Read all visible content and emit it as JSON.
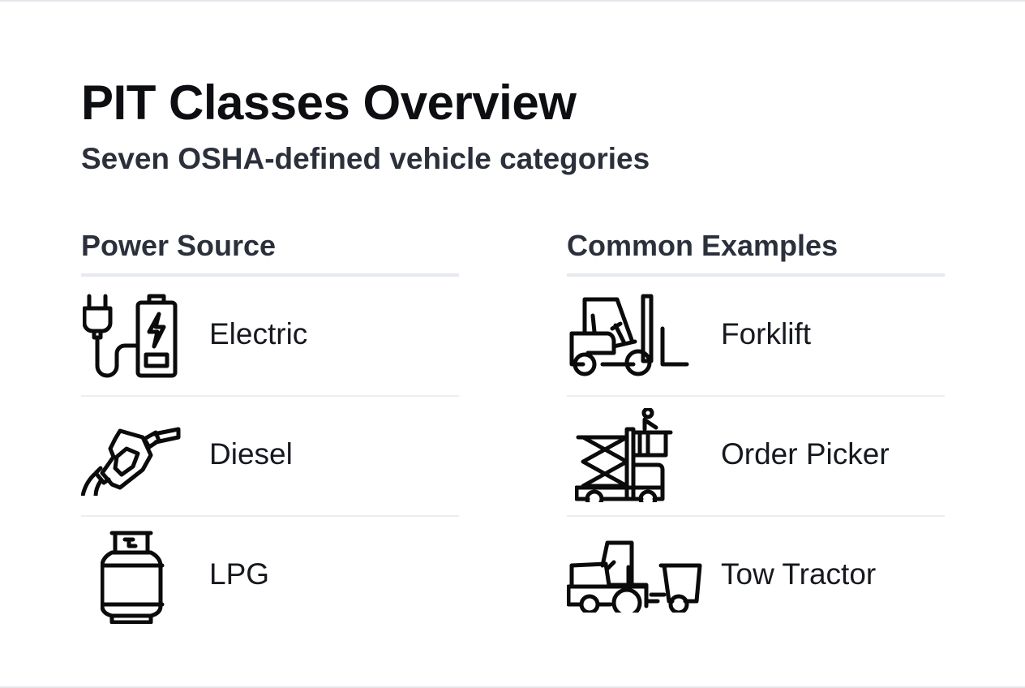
{
  "header": {
    "title": "PIT Classes Overview",
    "subtitle": "Seven OSHA-defined vehicle categories"
  },
  "power_source": {
    "heading": "Power Source",
    "items": [
      {
        "label": "Electric",
        "icon": "plug-battery-icon"
      },
      {
        "label": "Diesel",
        "icon": "fuel-nozzle-icon"
      },
      {
        "label": "LPG",
        "icon": "gas-cylinder-icon"
      }
    ]
  },
  "common_examples": {
    "heading": "Common Examples",
    "items": [
      {
        "label": "Forklift",
        "icon": "forklift-icon"
      },
      {
        "label": "Order Picker",
        "icon": "order-picker-icon"
      },
      {
        "label": "Tow Tractor",
        "icon": "tow-tractor-icon"
      }
    ]
  },
  "colors": {
    "title": "#0d0e12",
    "heading": "#2b303b",
    "divider": "#e6e9ee"
  }
}
